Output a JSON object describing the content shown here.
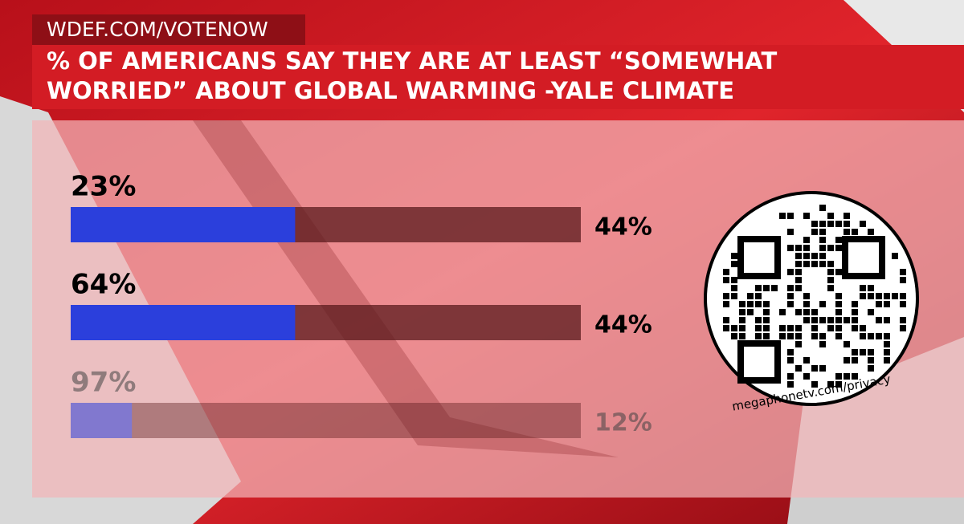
{
  "header": {
    "site": "WDEF.COM/VOTENOW",
    "title_lines": [
      "% OF AMERICANS SAY THEY ARE AT LEAST “SOMEWHAT",
      "WORRIED” ABOUT GLOBAL WARMING -YALE CLIMATE"
    ]
  },
  "chart_data": {
    "type": "bar",
    "orientation": "horizontal",
    "categories": [
      "23%",
      "64%",
      "97%"
    ],
    "values": [
      44,
      44,
      12
    ],
    "value_labels": [
      "44%",
      "44%",
      "12%"
    ],
    "xlim": [
      0,
      100
    ],
    "color": "#2b3fdc"
  },
  "qr": {
    "caption": "megaphonetv.com/privacy"
  }
}
